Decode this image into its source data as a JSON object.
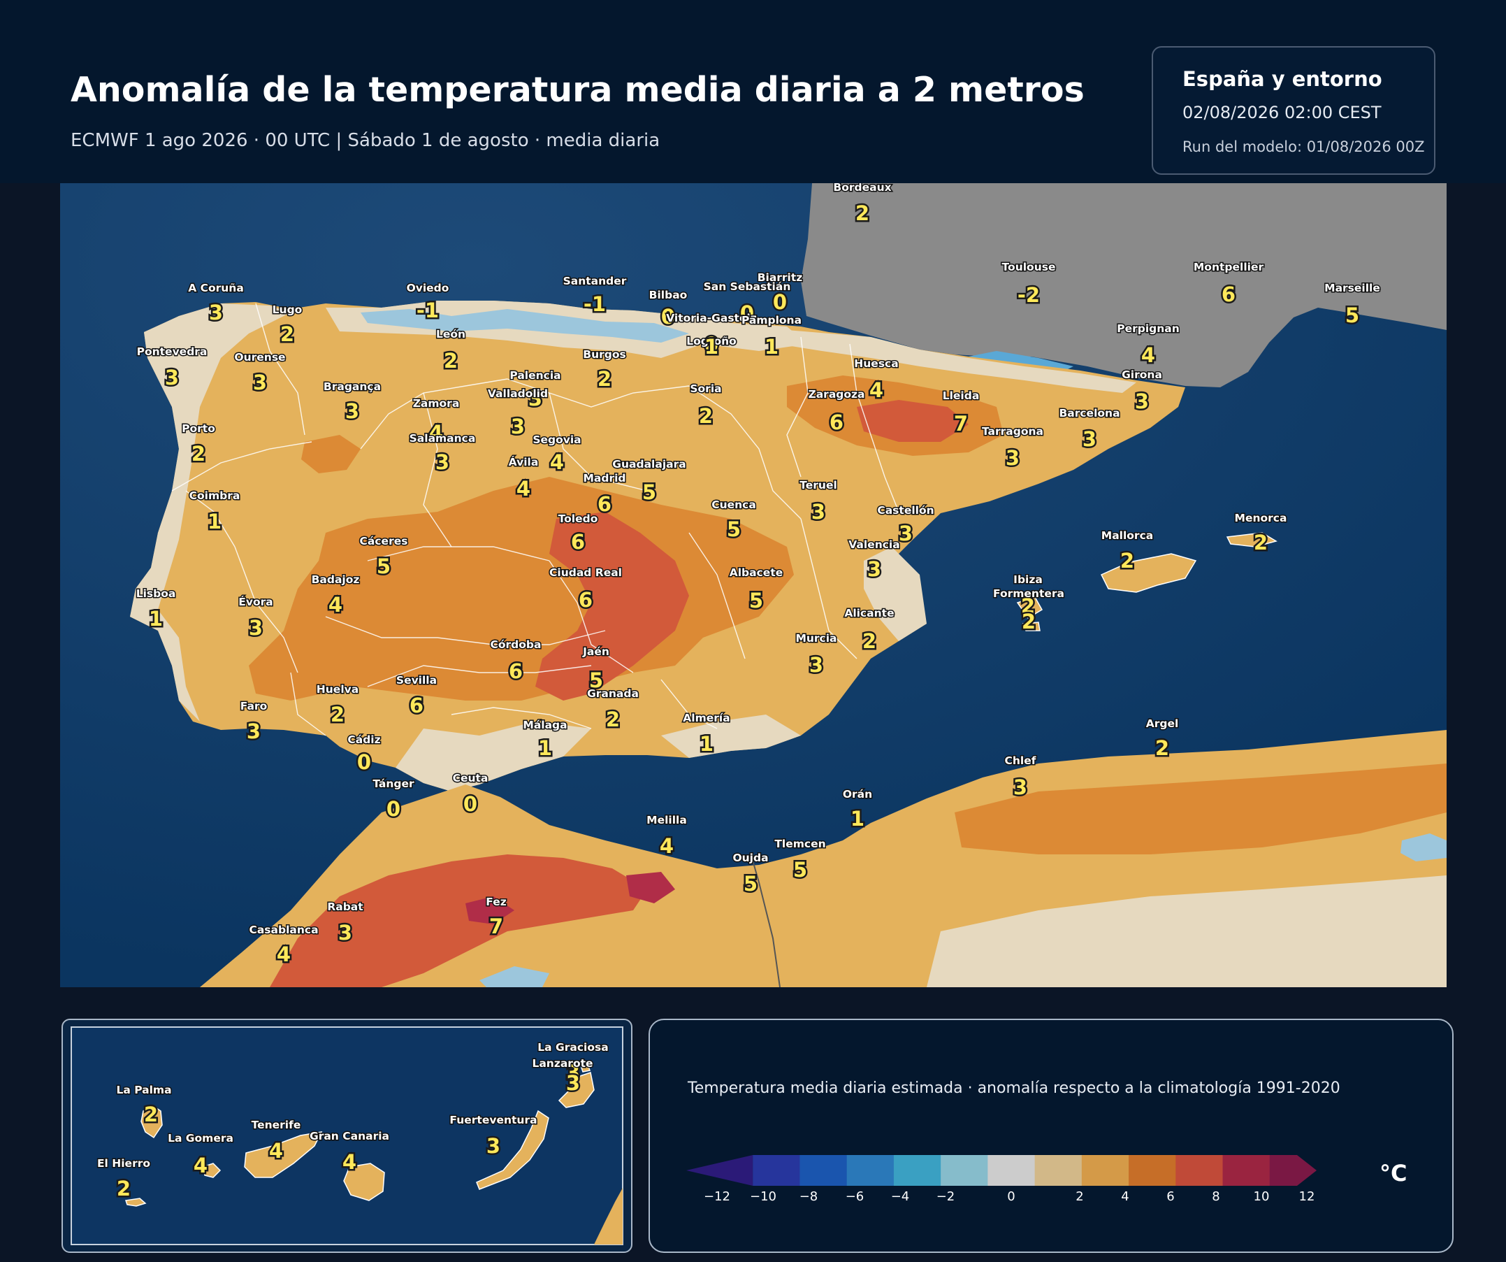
{
  "header": {
    "title": "Anomalía de la temperatura media diaria a 2 metros",
    "subtitle": "ECMWF 1 ago 2026 · 00 UTC  |  Sábado 1 de agosto · media diaria"
  },
  "info_box": {
    "region": "España y entorno",
    "valid_time": "02/08/2026  02:00 CEST",
    "model_run": "Run del modelo: 01/08/2026 00Z"
  },
  "map": {
    "colors": {
      "sea": "#0e3d6a",
      "france_land": "#8a8a8a",
      "light": "#e6d9bf",
      "pale_orange": "#e4b25c",
      "orange": "#dc8a35",
      "red_orange": "#d25a3a",
      "red": "#b02d48",
      "cool": "#9cc6dc",
      "borders": "#ffffff",
      "value_text": "#ffe85a"
    },
    "cities": [
      {
        "name": "Bordeaux",
        "value": "2"
      },
      {
        "name": "A Coruña",
        "value": "3"
      },
      {
        "name": "Oviedo",
        "value": "-1"
      },
      {
        "name": "Santander",
        "value": "-1"
      },
      {
        "name": "Bilbao",
        "value": "0"
      },
      {
        "name": "San Sebastián",
        "value": "0"
      },
      {
        "name": "Biarritz",
        "value": "0"
      },
      {
        "name": "Toulouse",
        "value": "-2"
      },
      {
        "name": "Montpellier",
        "value": "6"
      },
      {
        "name": "Marseille",
        "value": "5"
      },
      {
        "name": "Lugo",
        "value": "2"
      },
      {
        "name": "Vitoria-Gasteiz",
        "value": "0"
      },
      {
        "name": "Pamplona",
        "value": "1"
      },
      {
        "name": "León",
        "value": "2"
      },
      {
        "name": "Pontevedra",
        "value": "3"
      },
      {
        "name": "Ourense",
        "value": "3"
      },
      {
        "name": "Logroño",
        "value": "1"
      },
      {
        "name": "Burgos",
        "value": "2"
      },
      {
        "name": "Palencia",
        "value": "3"
      },
      {
        "name": "Perpignan",
        "value": "4"
      },
      {
        "name": "Huesca",
        "value": "4"
      },
      {
        "name": "Bragança",
        "value": "3"
      },
      {
        "name": "Valladolid",
        "value": "3"
      },
      {
        "name": "Soria",
        "value": "2"
      },
      {
        "name": "Girona",
        "value": "3"
      },
      {
        "name": "Zaragoza",
        "value": "6"
      },
      {
        "name": "Lleida",
        "value": "7"
      },
      {
        "name": "Zamora",
        "value": "4"
      },
      {
        "name": "Barcelona",
        "value": "3"
      },
      {
        "name": "Porto",
        "value": "2"
      },
      {
        "name": "Tarragona",
        "value": "3"
      },
      {
        "name": "Salamanca",
        "value": "3"
      },
      {
        "name": "Segovia",
        "value": "4"
      },
      {
        "name": "Ávila",
        "value": "4"
      },
      {
        "name": "Guadalajara",
        "value": "5"
      },
      {
        "name": "Madrid",
        "value": "6"
      },
      {
        "name": "Coimbra",
        "value": "1"
      },
      {
        "name": "Teruel",
        "value": "3"
      },
      {
        "name": "Cuenca",
        "value": "5"
      },
      {
        "name": "Toledo",
        "value": "6"
      },
      {
        "name": "Castellón",
        "value": "3"
      },
      {
        "name": "Menorca",
        "value": "2"
      },
      {
        "name": "Cáceres",
        "value": "5"
      },
      {
        "name": "Mallorca",
        "value": "2"
      },
      {
        "name": "Valencia",
        "value": "3"
      },
      {
        "name": "Ciudad Real",
        "value": "6"
      },
      {
        "name": "Albacete",
        "value": "5"
      },
      {
        "name": "Badajoz",
        "value": "4"
      },
      {
        "name": "Ibiza",
        "value": "2"
      },
      {
        "name": "Formentera",
        "value": "2"
      },
      {
        "name": "Lisboa",
        "value": "1"
      },
      {
        "name": "Évora",
        "value": "3"
      },
      {
        "name": "Alicante",
        "value": "2"
      },
      {
        "name": "Murcia",
        "value": "3"
      },
      {
        "name": "Córdoba",
        "value": "6"
      },
      {
        "name": "Jaén",
        "value": "5"
      },
      {
        "name": "Huelva",
        "value": "2"
      },
      {
        "name": "Sevilla",
        "value": "6"
      },
      {
        "name": "Granada",
        "value": "2"
      },
      {
        "name": "Faro",
        "value": "3"
      },
      {
        "name": "Almería",
        "value": "1"
      },
      {
        "name": "Málaga",
        "value": "1"
      },
      {
        "name": "Cádiz",
        "value": "0"
      },
      {
        "name": "Argel",
        "value": "2"
      },
      {
        "name": "Chlef",
        "value": "3"
      },
      {
        "name": "Ceuta",
        "value": "0"
      },
      {
        "name": "Tánger",
        "value": "0"
      },
      {
        "name": "Orán",
        "value": "1"
      },
      {
        "name": "Melilla",
        "value": "4"
      },
      {
        "name": "Tlemcen",
        "value": "5"
      },
      {
        "name": "Oujda",
        "value": "5"
      },
      {
        "name": "Fez",
        "value": "7"
      },
      {
        "name": "Rabat",
        "value": "3"
      },
      {
        "name": "Casablanca",
        "value": "4"
      }
    ]
  },
  "inset": {
    "islands": [
      {
        "name": "La Graciosa",
        "value": "3"
      },
      {
        "name": "Lanzarote",
        "value": "3"
      },
      {
        "name": "La Palma",
        "value": "2"
      },
      {
        "name": "Tenerife",
        "value": "4"
      },
      {
        "name": "Fuerteventura",
        "value": "3"
      },
      {
        "name": "La Gomera",
        "value": "4"
      },
      {
        "name": "Gran Canaria",
        "value": "4"
      },
      {
        "name": "El Hierro",
        "value": "2"
      }
    ]
  },
  "legend": {
    "description": "Temperatura media diaria estimada · anomalía respecto a la climatología 1991-2020",
    "unit": "°C",
    "color_bins": [
      "#2b1a78",
      "#26359c",
      "#1a55ae",
      "#2a78b8",
      "#3aa0c2",
      "#86bccb",
      "#cccccc",
      "#d2b888",
      "#d49a48",
      "#c66e28",
      "#c04a38",
      "#9a2440",
      "#7a1844"
    ],
    "ticks": [
      "−12",
      "−10",
      "−8",
      "−6",
      "−4",
      "−2",
      "0",
      "2",
      "4",
      "6",
      "8",
      "10",
      "12"
    ]
  }
}
